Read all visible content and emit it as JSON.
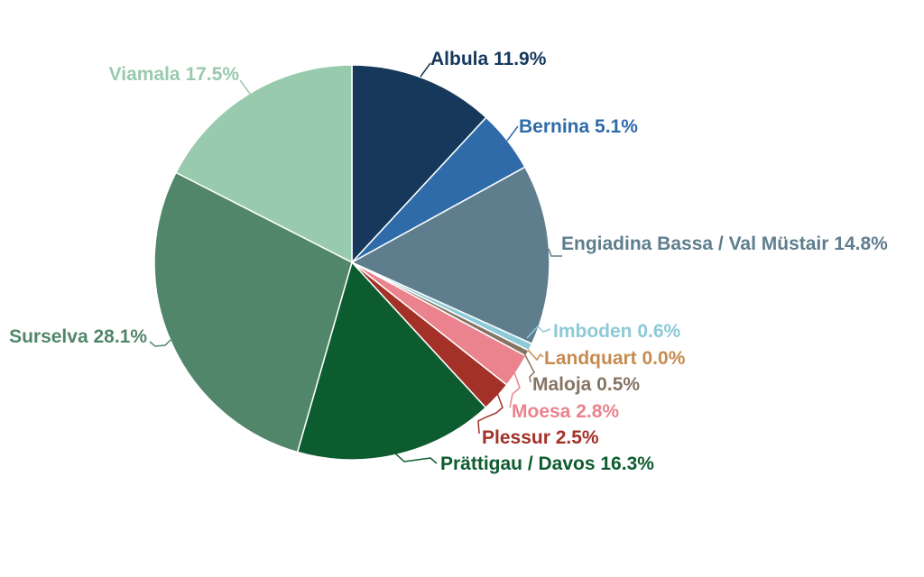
{
  "chart_data": {
    "type": "pie",
    "legend_position": "outside-labels",
    "background": "#ffffff",
    "slices": [
      {
        "label": "Albula",
        "value": 11.9,
        "display": "Albula 11.9%",
        "color": "#16395b"
      },
      {
        "label": "Bernina",
        "value": 5.1,
        "display": "Bernina 5.1%",
        "color": "#2e6ba8"
      },
      {
        "label": "Engiadina Bassa / Val Müstair",
        "value": 14.8,
        "display": "Engiadina Bassa / Val Müstair 14.8%",
        "color": "#5e7e8e"
      },
      {
        "label": "Imboden",
        "value": 0.6,
        "display": "Imboden 0.6%",
        "color": "#8ccad8"
      },
      {
        "label": "Landquart",
        "value": 0.0,
        "display": "Landquart 0.0%",
        "color": "#c68b50"
      },
      {
        "label": "Maloja",
        "value": 0.5,
        "display": "Maloja 0.5%",
        "color": "#857463"
      },
      {
        "label": "Moesa",
        "value": 2.8,
        "display": "Moesa 2.8%",
        "color": "#ea838e"
      },
      {
        "label": "Plessur",
        "value": 2.5,
        "display": "Plessur 2.5%",
        "color": "#a33127"
      },
      {
        "label": "Prättigau / Davos",
        "value": 16.3,
        "display": "Prättigau / Davos 16.3%",
        "color": "#0d5c30"
      },
      {
        "label": "Surselva",
        "value": 28.1,
        "display": "Surselva 28.1%",
        "color": "#52866a"
      },
      {
        "label": "Viamala",
        "value": 17.5,
        "display": "Viamala 17.5%",
        "color": "#98caad"
      }
    ]
  }
}
